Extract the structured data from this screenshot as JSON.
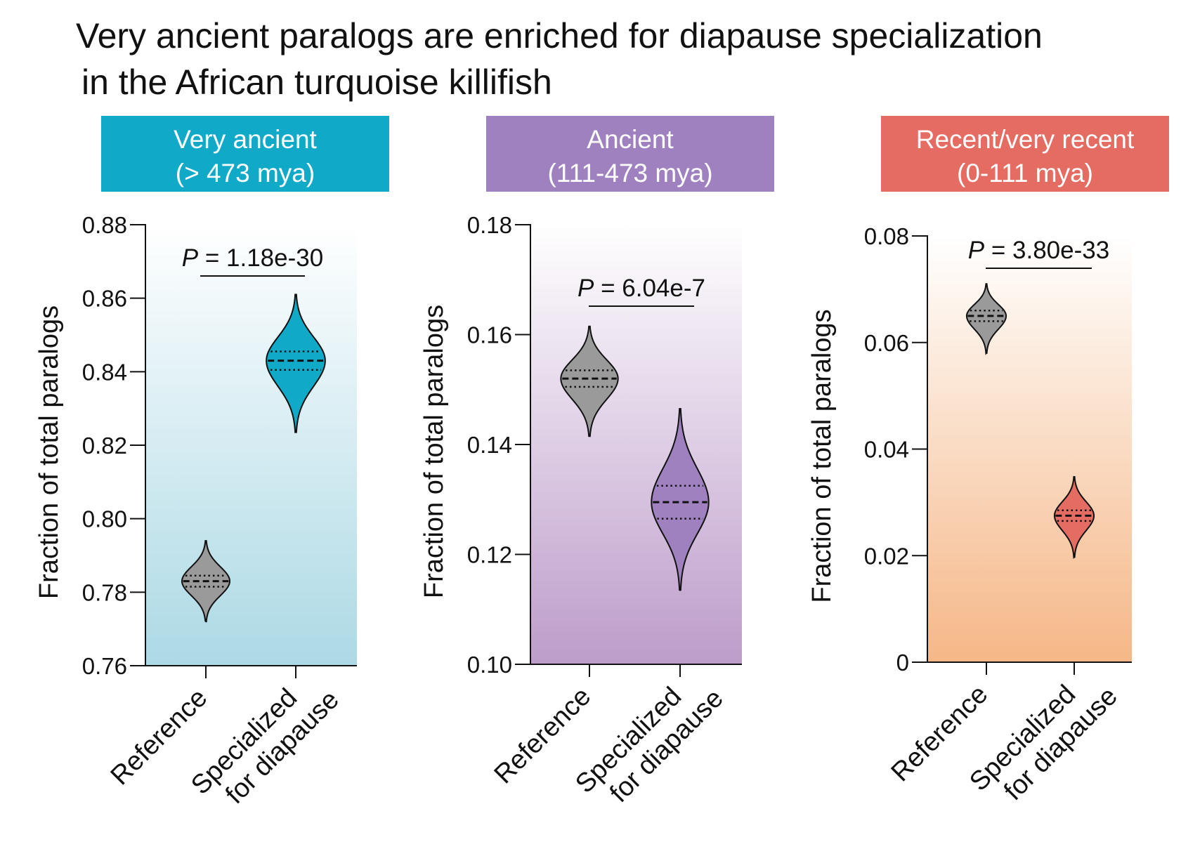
{
  "title": {
    "line1": "Very ancient paralogs are enriched for diapause specialization",
    "line2": "in the African turquoise killifish"
  },
  "chart_data": [
    {
      "type": "violin",
      "header": {
        "line1": "Very ancient",
        "line2": "(> 473 mya)",
        "color": "#10aac8"
      },
      "ylabel": "Fraction of total paralogs",
      "ylim": [
        0.76,
        0.88
      ],
      "yticks": [
        "0.76",
        "0.78",
        "0.80",
        "0.82",
        "0.84",
        "0.86",
        "0.88"
      ],
      "categories": [
        "Reference",
        "Specialized for diapause"
      ],
      "p_value": {
        "prefix": "P",
        "text": " = 1.18e-30"
      },
      "gradient": [
        "#ffffff",
        "#acd9e5"
      ],
      "series": [
        {
          "category": "Reference",
          "median": 0.783,
          "q1": 0.7815,
          "q3": 0.7845,
          "min": 0.772,
          "max": 0.794,
          "half_width": 0.0065,
          "color": "#9a9a9a"
        },
        {
          "category": "Specialized for diapause",
          "median": 0.843,
          "q1": 0.8405,
          "q3": 0.8455,
          "min": 0.8235,
          "max": 0.861,
          "half_width": 0.008,
          "color": "#10aac8"
        }
      ]
    },
    {
      "type": "violin",
      "header": {
        "line1": "Ancient",
        "line2": "(111-473 mya)",
        "color": "#a081bf"
      },
      "ylabel": "Fraction of total paralogs",
      "ylim": [
        0.1,
        0.18
      ],
      "yticks": [
        "0.10",
        "0.12",
        "0.14",
        "0.16",
        "0.18"
      ],
      "categories": [
        "Reference",
        "Specialized for diapause"
      ],
      "p_value": {
        "prefix": "P",
        "text": " = 6.04e-7"
      },
      "gradient": [
        "#ffffff",
        "#bd9cca"
      ],
      "series": [
        {
          "category": "Reference",
          "median": 0.152,
          "q1": 0.1505,
          "q3": 0.1535,
          "min": 0.1415,
          "max": 0.1615,
          "half_width": 0.0052,
          "color": "#9a9a9a"
        },
        {
          "category": "Specialized for diapause",
          "median": 0.1295,
          "q1": 0.1265,
          "q3": 0.1325,
          "min": 0.1135,
          "max": 0.1465,
          "half_width": 0.0052,
          "color": "#a081bf"
        }
      ]
    },
    {
      "type": "violin",
      "header": {
        "line1": "Recent/very recent",
        "line2": "(0-111 mya)",
        "color": "#e56c62"
      },
      "ylabel": "Fraction of total paralogs",
      "ylim": [
        0,
        0.08
      ],
      "yticks": [
        "0",
        "0.02",
        "0.04",
        "0.06",
        "0.08"
      ],
      "categories": [
        "Reference",
        "Specialized for diapause"
      ],
      "p_value": {
        "prefix": "P",
        "text": " = 3.80e-33"
      },
      "gradient": [
        "#ffffff",
        "#f5b787"
      ],
      "series": [
        {
          "category": "Reference",
          "median": 0.065,
          "q1": 0.064,
          "q3": 0.066,
          "min": 0.058,
          "max": 0.071,
          "half_width": 0.0037,
          "color": "#9a9a9a"
        },
        {
          "category": "Specialized for diapause",
          "median": 0.0275,
          "q1": 0.0265,
          "q3": 0.0285,
          "min": 0.0197,
          "max": 0.0348,
          "half_width": 0.0037,
          "color": "#e56c62"
        }
      ]
    }
  ]
}
